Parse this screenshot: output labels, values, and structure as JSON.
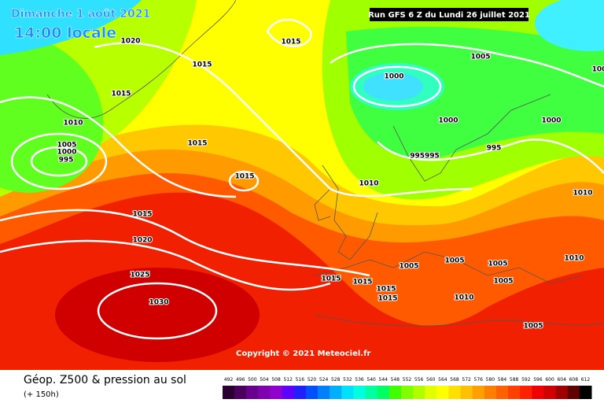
{
  "header": {
    "date": "Dimanche 1 août 2021",
    "time": "14:00 locale",
    "run": "Run GFS 6 Z du Lundi 26 juillet 2021"
  },
  "copyright": "Copyright © 2021 Meteociel.fr",
  "footer": {
    "title": "Géop. Z500 & pression au sol",
    "lead": "(+ 150h)"
  },
  "isobar_labels": [
    "1020",
    "1015",
    "1015",
    "1015",
    "1010",
    "1005",
    "1000",
    "995",
    "1015",
    "1015",
    "1015",
    "1020",
    "1025",
    "1030",
    "1005",
    "1000",
    "1000",
    "1000",
    "995",
    "995995",
    "1010",
    "1010",
    "1005",
    "1005",
    "1005",
    "1005",
    "1010",
    "1015",
    "1015",
    "1015",
    "1015",
    "1010",
    "1005",
    "100"
  ],
  "scale": {
    "labels": [
      492,
      496,
      500,
      504,
      508,
      512,
      516,
      520,
      524,
      528,
      532,
      536,
      540,
      544,
      548,
      552,
      556,
      560,
      564,
      568,
      572,
      576,
      580,
      584,
      588,
      592,
      596,
      600,
      604,
      608,
      612
    ],
    "colors": [
      "#2a0030",
      "#4b0060",
      "#6a0090",
      "#8000b0",
      "#9000d0",
      "#6000ff",
      "#2020ff",
      "#0050ff",
      "#0080ff",
      "#00b0ff",
      "#00e0ff",
      "#00ffe0",
      "#00ffa0",
      "#00ff60",
      "#40ff00",
      "#80ff00",
      "#b0ff00",
      "#e0ff00",
      "#ffff00",
      "#ffe000",
      "#ffc000",
      "#ffa000",
      "#ff8000",
      "#ff6000",
      "#ff4000",
      "#ff2000",
      "#f00000",
      "#d00000",
      "#a00000",
      "#600000",
      "#000000"
    ]
  }
}
